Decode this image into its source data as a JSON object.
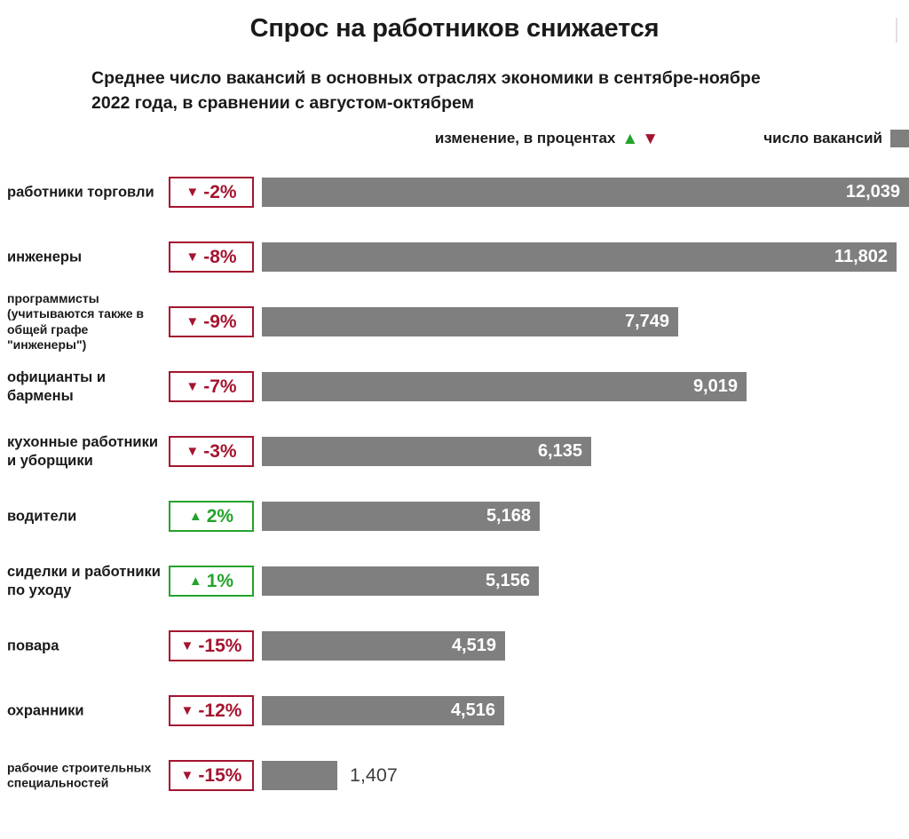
{
  "title": "Спрос на работников снижается",
  "subtitle": "Среднее число вакансий в основных отраслях экономики в сентябре-ноябре\n2022 года, в сравнении с августом-октябрем",
  "legend": {
    "change_label": "изменение, в процентах",
    "up_triangle": "▲",
    "down_triangle": "▼",
    "count_label": "число вакансий"
  },
  "colors": {
    "bar": "#7f7f7f",
    "negative": "#a4142f",
    "positive": "#23a32b",
    "value_inside": "#ffffff",
    "value_outside": "#3f3f3f"
  },
  "rows": [
    {
      "label": "работники торговли",
      "value": 12039,
      "value_label": "12,039",
      "change": -2,
      "change_label": "-2%"
    },
    {
      "label": "инженеры",
      "value": 11802,
      "value_label": "11,802",
      "change": -8,
      "change_label": "-8%"
    },
    {
      "label": "программисты\n(учитываются также в\nобщей графе\n\"инженеры\")",
      "value": 7749,
      "value_label": "7,749",
      "change": -9,
      "change_label": "-9%"
    },
    {
      "label": "официанты и\nбармены",
      "value": 9019,
      "value_label": "9,019",
      "change": -7,
      "change_label": "-7%"
    },
    {
      "label": "кухонные работники\nи уборщики",
      "value": 6135,
      "value_label": "6,135",
      "change": -3,
      "change_label": "-3%"
    },
    {
      "label": "водители",
      "value": 5168,
      "value_label": "5,168",
      "change": 2,
      "change_label": "2%"
    },
    {
      "label": "сиделки и работники\nпо уходу",
      "value": 5156,
      "value_label": "5,156",
      "change": 1,
      "change_label": "1%"
    },
    {
      "label": "повара",
      "value": 4519,
      "value_label": "4,519",
      "change": -15,
      "change_label": "-15%"
    },
    {
      "label": "охранники",
      "value": 4516,
      "value_label": "4,516",
      "change": -12,
      "change_label": "-12%"
    },
    {
      "label": "рабочие строительных\nспециальностей",
      "value": 1407,
      "value_label": "1,407",
      "change": -15,
      "change_label": "-15%"
    }
  ],
  "chart_data": {
    "type": "bar",
    "orientation": "horizontal",
    "title": "Спрос на работников снижается",
    "subtitle": "Среднее число вакансий в основных отраслях экономики в сентябре-ноябре 2022 года, в сравнении с августом-октябрем",
    "legend_entries": [
      "изменение, в процентах",
      "число вакансий"
    ],
    "legend_position": "top",
    "grid": false,
    "xlim": [
      0,
      12039
    ],
    "categories": [
      "работники торговли",
      "инженеры",
      "программисты (учитываются также в общей графе \"инженеры\")",
      "официанты и бармены",
      "кухонные работники и уборщики",
      "водители",
      "сиделки и работники по уходу",
      "повара",
      "охранники",
      "рабочие строительных специальностей"
    ],
    "series": [
      {
        "name": "число вакансий",
        "values": [
          12039,
          11802,
          7749,
          9019,
          6135,
          5168,
          5156,
          4519,
          4516,
          1407
        ]
      },
      {
        "name": "изменение, в процентах",
        "values": [
          -2,
          -8,
          -9,
          -7,
          -3,
          2,
          1,
          -15,
          -12,
          -15
        ]
      }
    ]
  }
}
